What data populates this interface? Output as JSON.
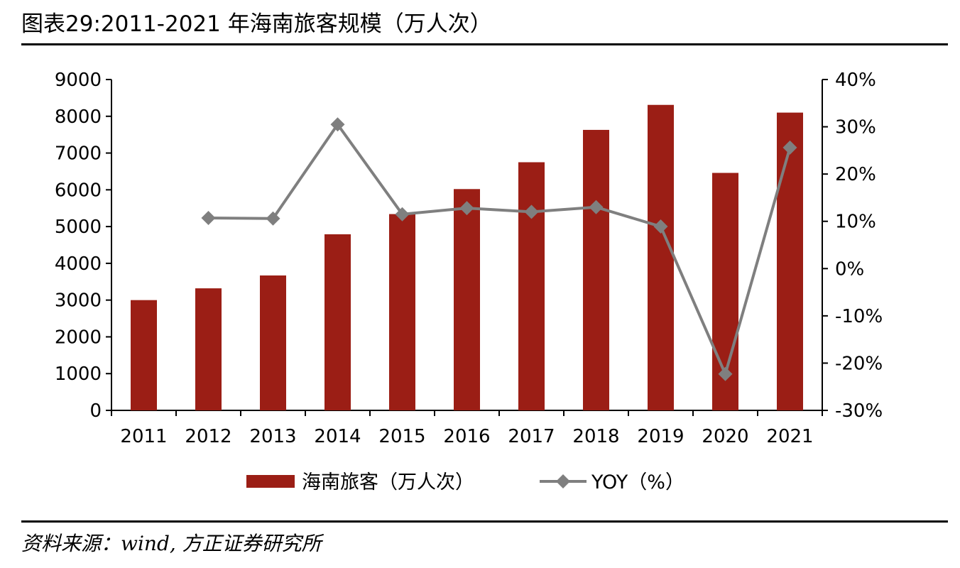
{
  "title": "图表29:2011-2021 年海南旅客规模（万人次）",
  "source": "资料来源：wind, 方正证券研究所",
  "colors": {
    "bar": "#9B1E15",
    "line": "#7F7F7F",
    "axis": "#000000"
  },
  "chart_data": {
    "type": "bar",
    "categories": [
      "2011",
      "2012",
      "2013",
      "2014",
      "2015",
      "2016",
      "2017",
      "2018",
      "2019",
      "2020",
      "2021"
    ],
    "series": [
      {
        "name": "海南旅客（万人次）",
        "type": "bar",
        "axis": "left",
        "values": [
          3000,
          3320,
          3670,
          4790,
          5340,
          6020,
          6750,
          7630,
          8310,
          6460,
          8100
        ]
      },
      {
        "name": "YOY（%）",
        "type": "line",
        "axis": "right",
        "marker": "diamond",
        "values": [
          null,
          10.7,
          10.6,
          30.5,
          11.5,
          12.8,
          12.0,
          13.0,
          8.9,
          -22.3,
          25.6
        ]
      }
    ],
    "y_left": {
      "min": 0,
      "max": 9000,
      "step": 1000,
      "tick_labels": [
        "0",
        "1000",
        "2000",
        "3000",
        "4000",
        "5000",
        "6000",
        "7000",
        "8000",
        "9000"
      ]
    },
    "y_right": {
      "min": -30,
      "max": 40,
      "step": 10,
      "tick_labels": [
        "-30%",
        "-20%",
        "-10%",
        "0%",
        "10%",
        "20%",
        "30%",
        "40%"
      ]
    },
    "legend": {
      "position": "bottom",
      "items": [
        {
          "label": "海南旅客（万人次）",
          "kind": "bar"
        },
        {
          "label": "YOY（%）",
          "kind": "line"
        }
      ]
    },
    "grid": false
  }
}
